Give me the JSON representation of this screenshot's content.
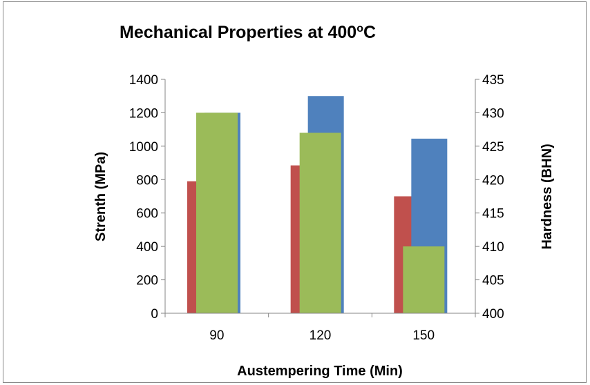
{
  "chart_data": {
    "type": "bar",
    "title": {
      "main": "Mechanical Properties at 400",
      "superscript": "o",
      "suffix": "C"
    },
    "xlabel": "Austempering Time (Min)",
    "ylabel": "Strenth (MPa)",
    "y2label": "Hardness (BHN)",
    "categories": [
      "90",
      "120",
      "150"
    ],
    "ylim": [
      0,
      1400
    ],
    "yticks": [
      "0",
      "200",
      "400",
      "600",
      "800",
      "1000",
      "1200",
      "1400"
    ],
    "y2lim": [
      400,
      435
    ],
    "y2ticks": [
      "400",
      "405",
      "410",
      "415",
      "420",
      "425",
      "430",
      "435"
    ],
    "grid": false,
    "legend": "none",
    "series": [
      {
        "axis": "left",
        "color": "#c0504d",
        "values": [
          790,
          885,
          700
        ]
      },
      {
        "axis": "left",
        "color": "#4f81bd",
        "values": [
          1200,
          1300,
          1045
        ]
      },
      {
        "axis": "right",
        "color": "#9bbb59",
        "values": [
          430,
          427,
          410
        ]
      }
    ]
  }
}
